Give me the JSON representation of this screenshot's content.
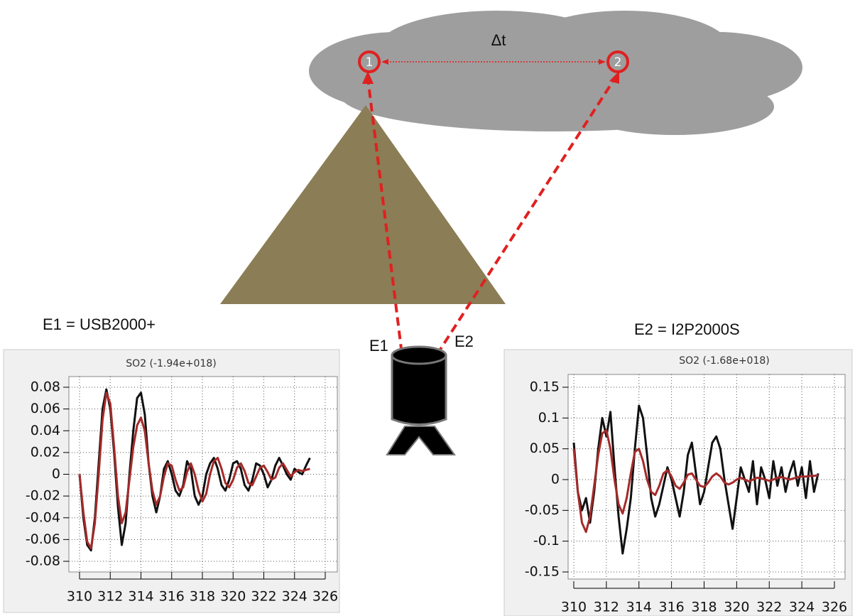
{
  "labels": {
    "delta_t": "Δt",
    "node1": "1",
    "node2": "2",
    "e1": "E1",
    "e2": "E2",
    "e1_caption": "E1 = USB2000+",
    "e2_caption": "E2 = I2P2000S"
  },
  "chart_data": [
    {
      "type": "line",
      "title": "SO2 (-1.94e+018)",
      "x": [
        310,
        310.25,
        310.5,
        310.75,
        311,
        311.25,
        311.5,
        311.75,
        312,
        312.25,
        312.5,
        312.75,
        313,
        313.25,
        313.5,
        313.75,
        314,
        314.25,
        314.5,
        314.75,
        315,
        315.25,
        315.5,
        315.75,
        316,
        316.25,
        316.5,
        316.75,
        317,
        317.25,
        317.5,
        317.75,
        318,
        318.25,
        318.5,
        318.75,
        319,
        319.25,
        319.5,
        319.75,
        320,
        320.25,
        320.5,
        320.75,
        321,
        321.25,
        321.5,
        321.75,
        322,
        322.25,
        322.5,
        322.75,
        323,
        323.25,
        323.5,
        323.75,
        324,
        324.25,
        324.5,
        324.75,
        325
      ],
      "series": [
        {
          "color": "#111111",
          "values": [
            0,
            -0.04,
            -0.065,
            -0.07,
            -0.04,
            0.01,
            0.06,
            0.078,
            0.06,
            0.02,
            -0.03,
            -0.065,
            -0.045,
            0,
            0.04,
            0.07,
            0.075,
            0.055,
            0.01,
            -0.02,
            -0.035,
            -0.02,
            0.005,
            0.012,
            0,
            -0.015,
            -0.02,
            -0.01,
            0.012,
            0.005,
            -0.02,
            -0.028,
            -0.02,
            0,
            0.01,
            0.015,
            0.005,
            -0.01,
            -0.015,
            -0.005,
            0.01,
            0.012,
            0.005,
            -0.01,
            -0.015,
            -0.005,
            0.01,
            0.008,
            0,
            -0.012,
            -0.005,
            0.008,
            0.015,
            0.008,
            0,
            -0.005,
            0.005,
            0.002,
            0,
            0.008,
            0.015
          ]
        },
        {
          "color": "#a52a2a",
          "values": [
            0,
            -0.035,
            -0.062,
            -0.068,
            -0.045,
            0,
            0.05,
            0.075,
            0.065,
            0.025,
            -0.02,
            -0.045,
            -0.035,
            -0.005,
            0.025,
            0.045,
            0.052,
            0.04,
            0.01,
            -0.015,
            -0.028,
            -0.02,
            -0.002,
            0.01,
            0.008,
            -0.005,
            -0.015,
            -0.012,
            0.002,
            0.01,
            0,
            -0.015,
            -0.025,
            -0.018,
            0,
            0.012,
            0.015,
            0.005,
            -0.008,
            -0.012,
            -0.005,
            0.006,
            0.01,
            0.003,
            -0.008,
            -0.01,
            -0.002,
            0.006,
            0.008,
            0.002,
            -0.005,
            -0.003,
            0.006,
            0.01,
            0.004,
            -0.002,
            0.002,
            0.004,
            0.003,
            0.004,
            0.005
          ]
        }
      ],
      "xlim": [
        310,
        326
      ],
      "xticks": [
        310,
        312,
        314,
        316,
        318,
        320,
        322,
        324,
        326
      ],
      "ylim": [
        -0.08,
        0.08
      ],
      "yticks": [
        -0.08,
        -0.06,
        -0.04,
        -0.02,
        0,
        0.02,
        0.04,
        0.06,
        0.08
      ],
      "grid": true
    },
    {
      "type": "line",
      "title": "SO2 (-1.68e+018)",
      "x": [
        310,
        310.25,
        310.5,
        310.75,
        311,
        311.25,
        311.5,
        311.75,
        312,
        312.25,
        312.5,
        312.75,
        313,
        313.25,
        313.5,
        313.75,
        314,
        314.25,
        314.5,
        314.75,
        315,
        315.25,
        315.5,
        315.75,
        316,
        316.25,
        316.5,
        316.75,
        317,
        317.25,
        317.5,
        317.75,
        318,
        318.25,
        318.5,
        318.75,
        319,
        319.25,
        319.5,
        319.75,
        320,
        320.25,
        320.5,
        320.75,
        321,
        321.25,
        321.5,
        321.75,
        322,
        322.25,
        322.5,
        322.75,
        323,
        323.25,
        323.5,
        323.75,
        324,
        324.25,
        324.5,
        324.75,
        325
      ],
      "series": [
        {
          "color": "#111111",
          "values": [
            0.06,
            -0.02,
            -0.05,
            -0.03,
            -0.07,
            -0.02,
            0.05,
            0.1,
            0.07,
            0.11,
            0.02,
            -0.06,
            -0.12,
            -0.08,
            -0.03,
            0.05,
            0.12,
            0.1,
            0.04,
            -0.03,
            -0.06,
            -0.04,
            -0.01,
            0.02,
            0,
            -0.03,
            -0.06,
            -0.02,
            0.04,
            0.06,
            0.01,
            -0.04,
            -0.02,
            0.02,
            0.06,
            0.07,
            0.05,
            0,
            -0.04,
            -0.08,
            -0.03,
            0.02,
            0,
            -0.02,
            0.03,
            -0.04,
            0.02,
            0,
            -0.03,
            0.03,
            -0.01,
            0.02,
            -0.02,
            0.01,
            0.03,
            -0.01,
            0.02,
            -0.03,
            0.03,
            -0.02,
            0.01
          ]
        },
        {
          "color": "#a52a2a",
          "values": [
            0.05,
            -0.02,
            -0.07,
            -0.085,
            -0.06,
            -0.01,
            0.04,
            0.075,
            0.08,
            0.05,
            0,
            -0.04,
            -0.055,
            -0.03,
            0.01,
            0.045,
            0.05,
            0.03,
            0,
            -0.02,
            -0.025,
            -0.01,
            0.01,
            0.015,
            0.005,
            -0.01,
            -0.015,
            -0.005,
            0.008,
            0.01,
            0,
            -0.01,
            -0.012,
            -0.005,
            0.005,
            0.01,
            0.005,
            -0.005,
            -0.008,
            -0.005,
            0,
            0.003,
            0,
            -0.003,
            0,
            0.003,
            0.002,
            0,
            -0.002,
            0,
            0.003,
            0.004,
            0.002,
            0,
            0.002,
            0.004,
            0.005,
            0.005,
            0.006,
            0.006,
            0.007
          ]
        }
      ],
      "xlim": [
        310,
        326
      ],
      "xticks": [
        310,
        312,
        314,
        316,
        318,
        320,
        322,
        324,
        326
      ],
      "ylim": [
        -0.15,
        0.15
      ],
      "yticks": [
        -0.15,
        -0.1,
        -0.05,
        0,
        0.05,
        0.1,
        0.15
      ],
      "grid": true
    }
  ]
}
